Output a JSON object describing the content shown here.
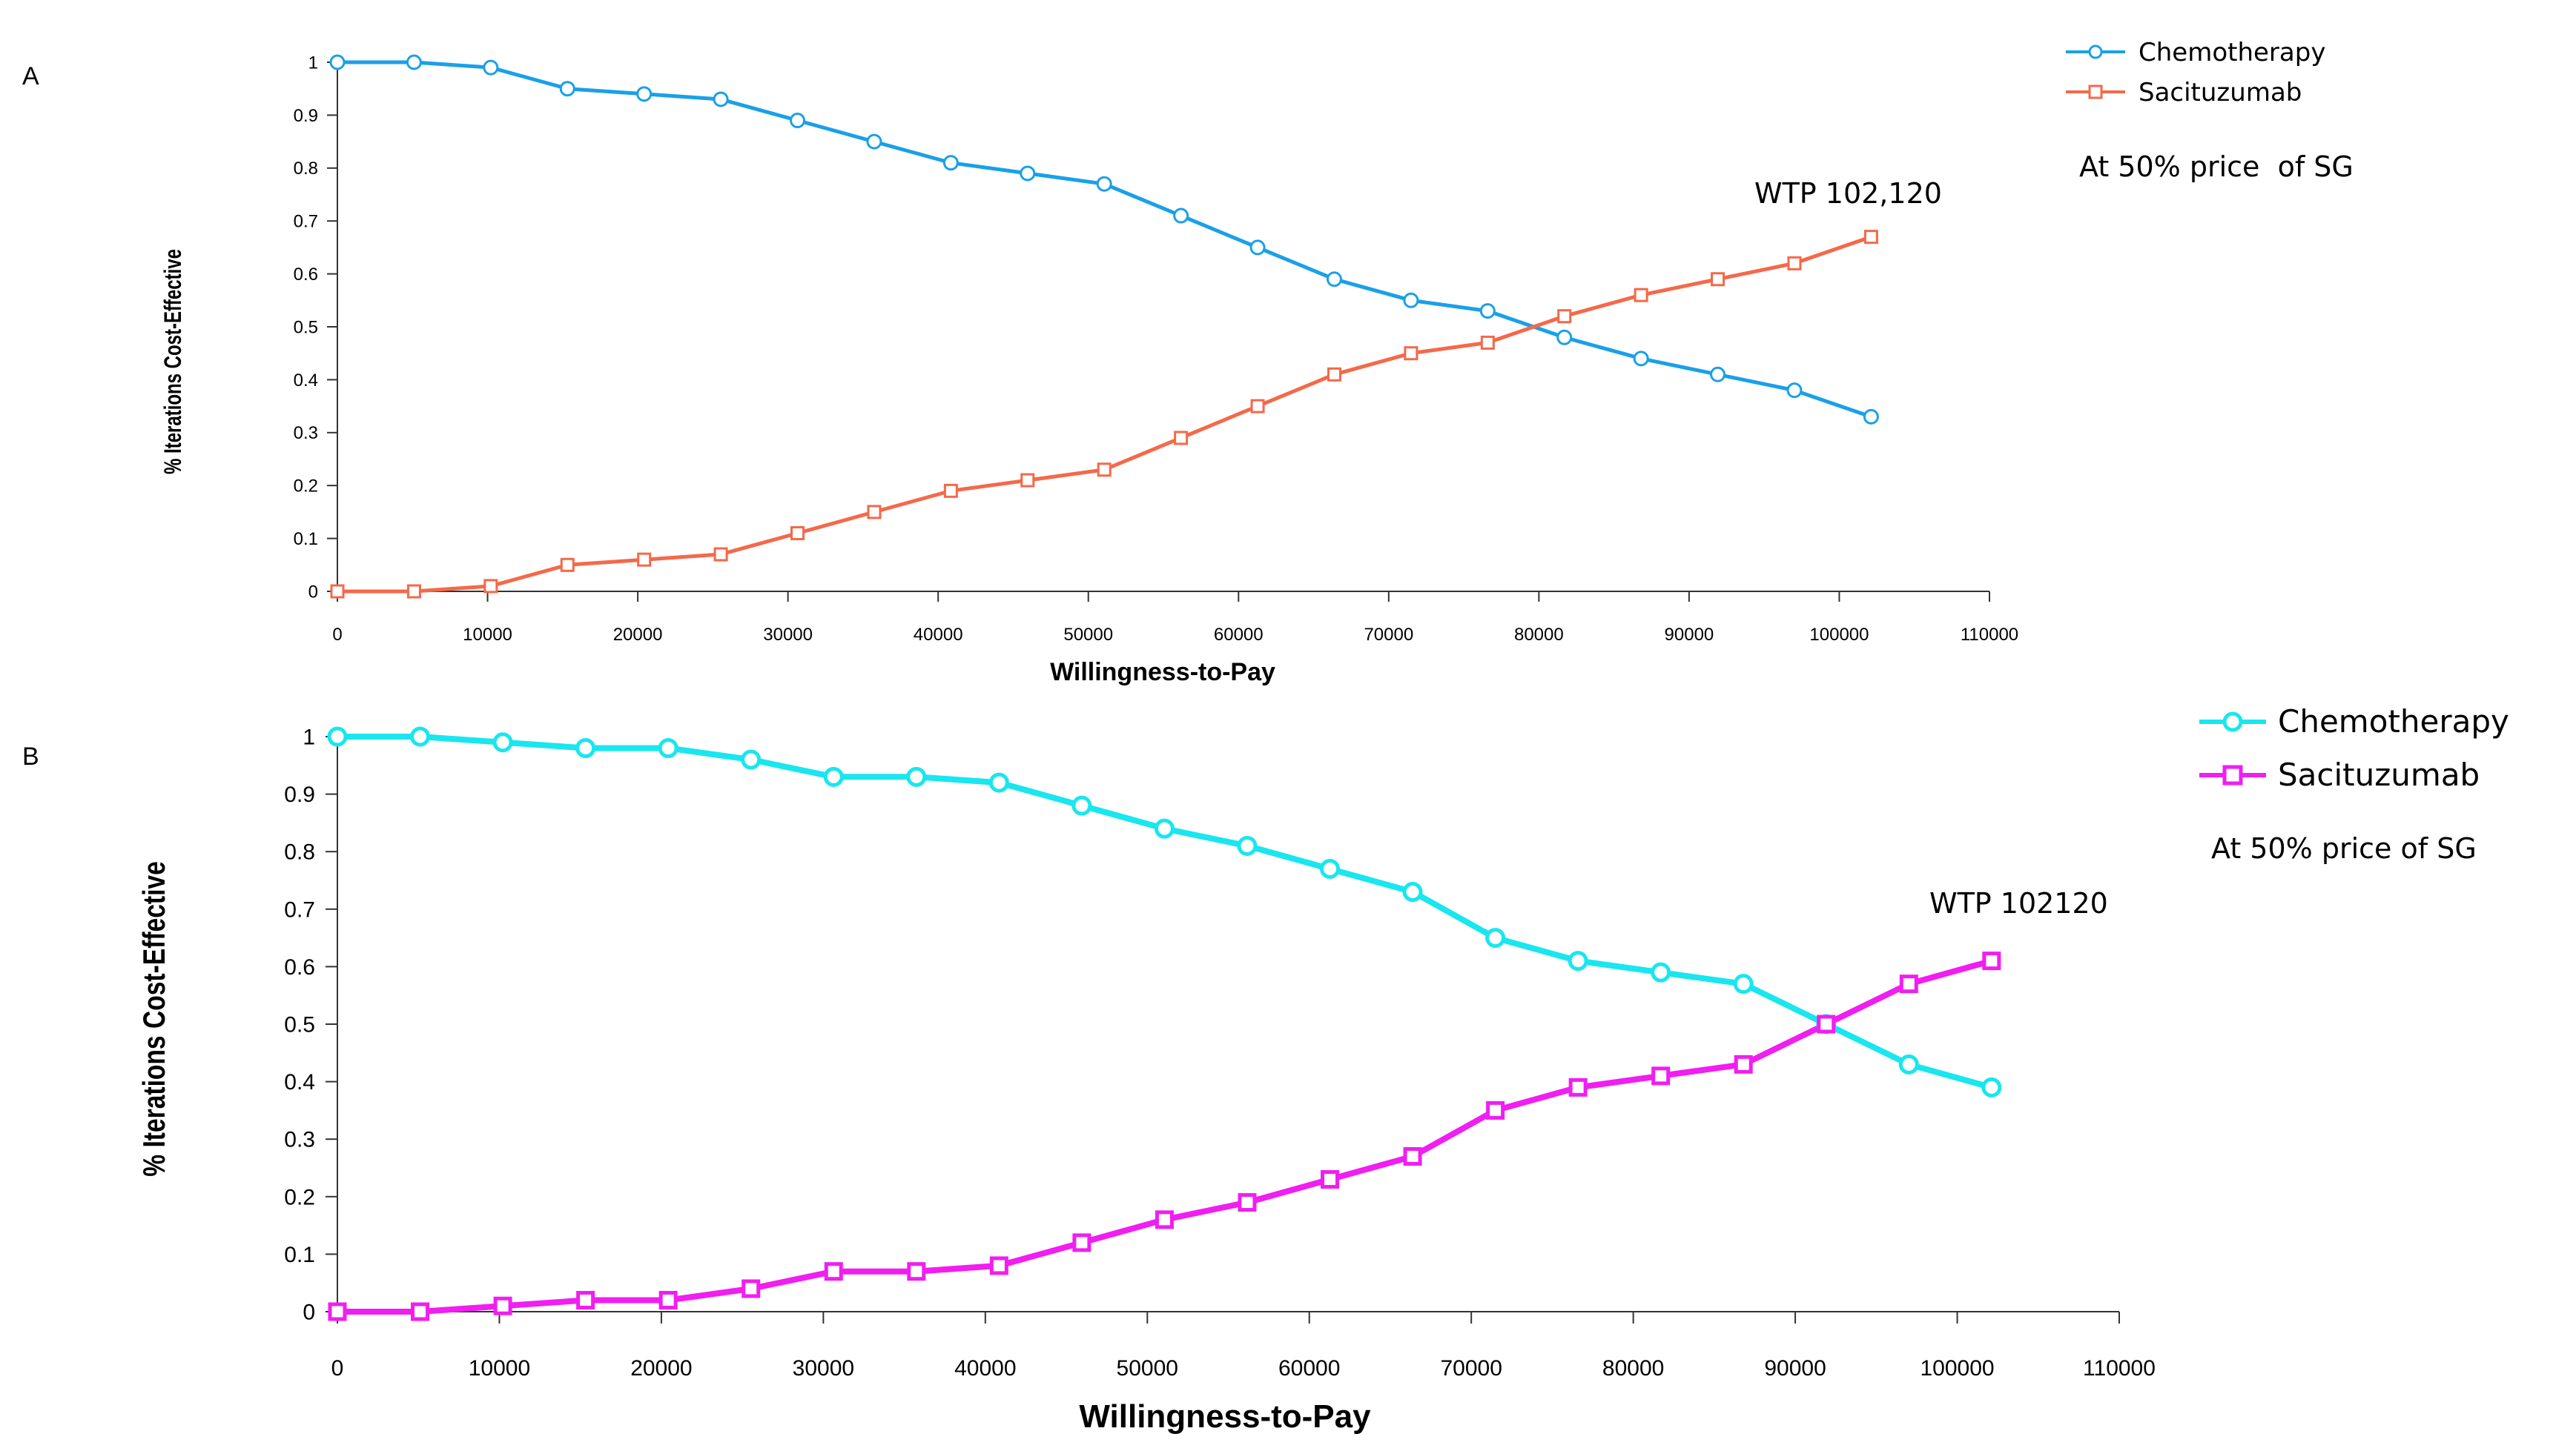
{
  "chart_data": [
    {
      "panel": "A",
      "type": "line",
      "title": "",
      "xlabel": "Willingness-to-Pay",
      "ylabel": "% Iterations Cost-Effective",
      "xlim": [
        0,
        110000
      ],
      "ylim": [
        0,
        1
      ],
      "xticks": [
        0,
        10000,
        20000,
        30000,
        40000,
        50000,
        60000,
        70000,
        80000,
        90000,
        100000,
        110000
      ],
      "yticks": [
        0,
        0.1,
        0.2,
        0.3,
        0.4,
        0.5,
        0.6,
        0.7,
        0.8,
        0.9,
        1
      ],
      "ytick_labels": [
        "0",
        "0.1",
        "0.2",
        "0.3",
        "0.4",
        "0.5",
        "0.6",
        "0.7",
        "0.8",
        "0.9",
        "1"
      ],
      "x": [
        0,
        5106,
        10212,
        15318,
        20424,
        25530,
        30636,
        35742,
        40848,
        45954,
        51060,
        56166,
        61272,
        66378,
        71484,
        76590,
        81696,
        86802,
        91908,
        97014,
        102120
      ],
      "series": [
        {
          "name": "Chemotherapy",
          "color": "#1aa0e8",
          "marker": "circle",
          "values": [
            1.0,
            1.0,
            0.99,
            0.95,
            0.94,
            0.93,
            0.89,
            0.85,
            0.81,
            0.79,
            0.77,
            0.71,
            0.65,
            0.59,
            0.55,
            0.53,
            0.48,
            0.44,
            0.41,
            0.38,
            0.33
          ]
        },
        {
          "name": "Sacituzumab",
          "color": "#f4694a",
          "marker": "square",
          "values": [
            0.0,
            0.0,
            0.01,
            0.05,
            0.06,
            0.07,
            0.11,
            0.15,
            0.19,
            0.21,
            0.23,
            0.29,
            0.35,
            0.41,
            0.45,
            0.47,
            0.52,
            0.56,
            0.59,
            0.62,
            0.67
          ]
        }
      ],
      "annotations": [
        "WTP 102,120",
        "At 50% price  of SG"
      ],
      "legend_position": "top-right"
    },
    {
      "panel": "B",
      "type": "line",
      "title": "",
      "xlabel": "Willingness-to-Pay",
      "ylabel": "% Iterations Cost-Effective",
      "xlim": [
        0,
        110000
      ],
      "ylim": [
        0,
        1
      ],
      "xticks": [
        0,
        10000,
        20000,
        30000,
        40000,
        50000,
        60000,
        70000,
        80000,
        90000,
        100000,
        110000
      ],
      "yticks": [
        0,
        0.1,
        0.2,
        0.3,
        0.4,
        0.5,
        0.6,
        0.7,
        0.8,
        0.9,
        1
      ],
      "ytick_labels": [
        "0",
        "0.1",
        "0.2",
        "0.3",
        "0.4",
        "0.5",
        "0.6",
        "0.7",
        "0.8",
        "0.9",
        "1"
      ],
      "x": [
        0,
        5106,
        10212,
        15318,
        20424,
        25530,
        30636,
        35742,
        40848,
        45954,
        51060,
        56166,
        61272,
        66378,
        71484,
        76590,
        81696,
        86802,
        91908,
        97014,
        102120
      ],
      "series": [
        {
          "name": "Chemotherapy",
          "color": "#19e6ef",
          "marker": "circle",
          "values": [
            1.0,
            1.0,
            0.99,
            0.98,
            0.98,
            0.96,
            0.93,
            0.93,
            0.92,
            0.88,
            0.84,
            0.81,
            0.77,
            0.73,
            0.65,
            0.61,
            0.59,
            0.57,
            0.5,
            0.43,
            0.39
          ]
        },
        {
          "name": "Sacituzumab",
          "color": "#f01ef0",
          "marker": "square",
          "values": [
            0.0,
            0.0,
            0.01,
            0.02,
            0.02,
            0.04,
            0.07,
            0.07,
            0.08,
            0.12,
            0.16,
            0.19,
            0.23,
            0.27,
            0.35,
            0.39,
            0.41,
            0.43,
            0.5,
            0.57,
            0.61
          ]
        }
      ],
      "annotations": [
        "WTP 102120",
        "At 50% price of SG"
      ],
      "legend_position": "top-right"
    }
  ]
}
